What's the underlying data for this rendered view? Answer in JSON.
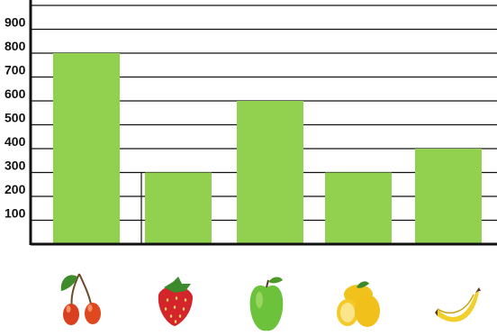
{
  "chart_data": {
    "type": "bar",
    "categories": [
      "cherries",
      "strawberry",
      "apple",
      "lemons",
      "banana"
    ],
    "values": [
      800,
      300,
      600,
      300,
      400
    ],
    "title": "",
    "xlabel": "",
    "ylabel": "",
    "ylim": [
      0,
      1000
    ],
    "yticks": [
      100,
      200,
      300,
      400,
      500,
      600,
      700,
      800,
      900
    ],
    "grid": true,
    "legend": "none",
    "x_tick_icons": [
      "cherries-icon",
      "strawberry-icon",
      "apple-icon",
      "lemons-icon",
      "banana-icon"
    ],
    "colors": {
      "bar": "#92d050",
      "grid": "#111111",
      "axis": "#111111"
    }
  }
}
